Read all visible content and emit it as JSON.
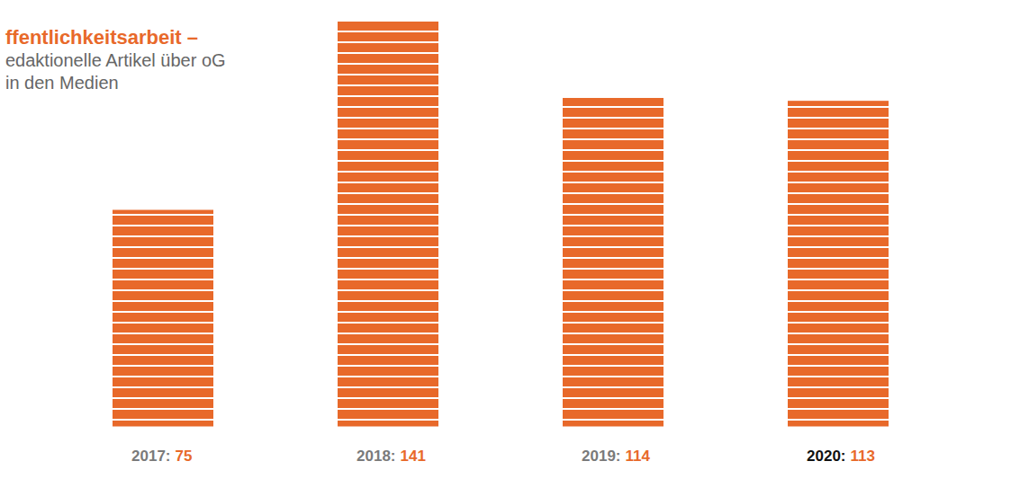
{
  "chart_data": {
    "type": "bar",
    "title": "ffentlichkeitsarbeit –",
    "subtitle": "edaktionelle Artikel über oG in den Medien",
    "categories": [
      "2017:",
      "2018:",
      "2019:",
      "2020:"
    ],
    "values": [
      75,
      141,
      114,
      113
    ],
    "color": "#e8692a",
    "ylim": [
      0,
      145
    ],
    "data_labels": true,
    "tick_labels": "x"
  }
}
